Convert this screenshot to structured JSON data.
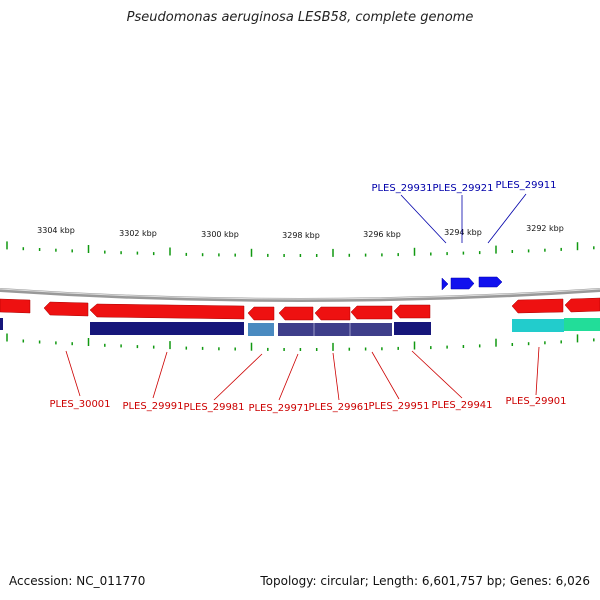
{
  "title": "Pseudomonas aeruginosa LESB58, complete genome",
  "accession": "Accession: NC_011770",
  "topology": "Topology: circular; Length: 6,601,757 bp; Genes: 6,026",
  "colors": {
    "reverse_arrow": "#ee1111",
    "forward_arrow": "#1111ee",
    "reverse_label": "#cc0000",
    "forward_label": "#0000aa",
    "ticks": "#119911",
    "backbone": "#888888",
    "navy_band": "#16167a",
    "purple_band": "#3e3e8a",
    "steelblue_band": "#4a8ac0",
    "cyan_band": "#22cccc",
    "green_band": "#22dd99"
  },
  "scale_labels": [
    "3304 kbp",
    "3302 kbp",
    "3300 kbp",
    "3298 kbp",
    "3296 kbp",
    "3294 kbp",
    "3292 kbp"
  ],
  "forward_genes": [
    "PLES_29931",
    "PLES_29921",
    "PLES_29911"
  ],
  "reverse_genes": [
    "PLES_30001",
    "PLES_29991",
    "PLES_29981",
    "PLES_29971",
    "PLES_29961",
    "PLES_29951",
    "PLES_29941",
    "PLES_29901"
  ]
}
